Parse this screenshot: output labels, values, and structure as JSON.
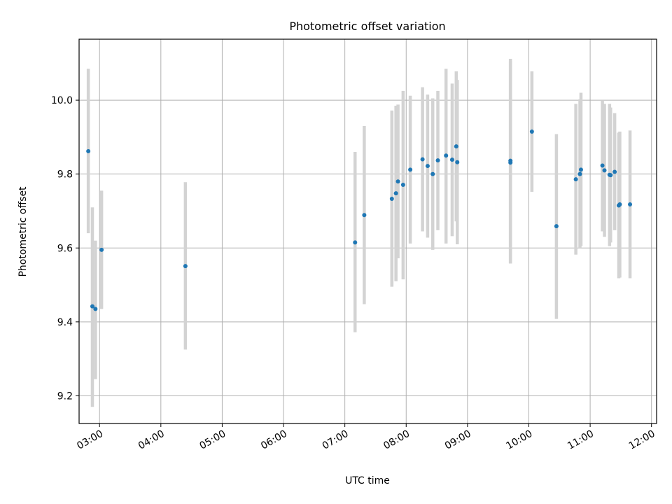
{
  "chart_data": {
    "type": "scatter",
    "title": "Photometric offset variation",
    "xlabel": "UTC time",
    "ylabel": "Photometric offset",
    "x_axis_type": "time",
    "xlim": [
      "02:40",
      "12:05"
    ],
    "ylim": [
      9.125,
      10.165
    ],
    "grid": true,
    "x_ticks": [
      "03:00",
      "04:00",
      "05:00",
      "06:00",
      "07:00",
      "08:00",
      "09:00",
      "10:00",
      "11:00",
      "12:00"
    ],
    "y_ticks": [
      "9.2",
      "9.4",
      "9.6",
      "9.8",
      "10.0"
    ],
    "colors": {
      "marker": "#1f77b4",
      "errorbar": "#d3d3d3",
      "grid": "#b0b0b0"
    },
    "series": [
      {
        "points": [
          {
            "x": "02:49",
            "y": 9.862,
            "lo": 9.64,
            "hi": 10.085
          },
          {
            "x": "02:53",
            "y": 9.442,
            "lo": 9.17,
            "hi": 9.71
          },
          {
            "x": "02:56",
            "y": 9.435,
            "lo": 9.245,
            "hi": 9.62
          },
          {
            "x": "03:02",
            "y": 9.595,
            "lo": 9.435,
            "hi": 9.755
          },
          {
            "x": "04:24",
            "y": 9.551,
            "lo": 9.325,
            "hi": 9.778
          },
          {
            "x": "07:10",
            "y": 9.615,
            "lo": 9.372,
            "hi": 9.86
          },
          {
            "x": "07:19",
            "y": 9.689,
            "lo": 9.448,
            "hi": 9.93
          },
          {
            "x": "07:46",
            "y": 9.733,
            "lo": 9.495,
            "hi": 9.972
          },
          {
            "x": "07:50",
            "y": 9.748,
            "lo": 9.51,
            "hi": 9.985
          },
          {
            "x": "07:52",
            "y": 9.78,
            "lo": 9.572,
            "hi": 9.988
          },
          {
            "x": "07:57",
            "y": 9.771,
            "lo": 9.515,
            "hi": 10.025
          },
          {
            "x": "08:04",
            "y": 9.812,
            "lo": 9.612,
            "hi": 10.012
          },
          {
            "x": "08:16",
            "y": 9.84,
            "lo": 9.645,
            "hi": 10.035
          },
          {
            "x": "08:21",
            "y": 9.822,
            "lo": 9.628,
            "hi": 10.015
          },
          {
            "x": "08:26",
            "y": 9.8,
            "lo": 9.595,
            "hi": 10.005
          },
          {
            "x": "08:31",
            "y": 9.837,
            "lo": 9.648,
            "hi": 10.025
          },
          {
            "x": "08:39",
            "y": 9.85,
            "lo": 9.612,
            "hi": 10.085
          },
          {
            "x": "08:45",
            "y": 9.839,
            "lo": 9.632,
            "hi": 10.045
          },
          {
            "x": "08:49",
            "y": 9.875,
            "lo": 9.672,
            "hi": 10.078
          },
          {
            "x": "08:50",
            "y": 9.832,
            "lo": 9.61,
            "hi": 10.055
          },
          {
            "x": "09:42",
            "y": 9.836,
            "lo": 9.558,
            "hi": 10.112
          },
          {
            "x": "09:42",
            "y": 9.831,
            "lo": 9.558,
            "hi": 10.105
          },
          {
            "x": "10:03",
            "y": 9.915,
            "lo": 9.752,
            "hi": 10.078
          },
          {
            "x": "10:27",
            "y": 9.659,
            "lo": 9.408,
            "hi": 9.908
          },
          {
            "x": "10:46",
            "y": 9.786,
            "lo": 9.582,
            "hi": 9.99
          },
          {
            "x": "10:50",
            "y": 9.8,
            "lo": 9.598,
            "hi": 10.002
          },
          {
            "x": "10:51",
            "y": 9.812,
            "lo": 9.605,
            "hi": 10.02
          },
          {
            "x": "11:12",
            "y": 9.823,
            "lo": 9.645,
            "hi": 10.0
          },
          {
            "x": "11:14",
            "y": 9.81,
            "lo": 9.63,
            "hi": 9.99
          },
          {
            "x": "11:19",
            "y": 9.798,
            "lo": 9.605,
            "hi": 9.99
          },
          {
            "x": "11:20",
            "y": 9.797,
            "lo": 9.615,
            "hi": 9.98
          },
          {
            "x": "11:24",
            "y": 9.806,
            "lo": 9.648,
            "hi": 9.965
          },
          {
            "x": "11:28",
            "y": 9.715,
            "lo": 9.518,
            "hi": 9.912
          },
          {
            "x": "11:29",
            "y": 9.718,
            "lo": 9.52,
            "hi": 9.915
          },
          {
            "x": "11:39",
            "y": 9.718,
            "lo": 9.518,
            "hi": 9.918
          }
        ]
      }
    ]
  }
}
